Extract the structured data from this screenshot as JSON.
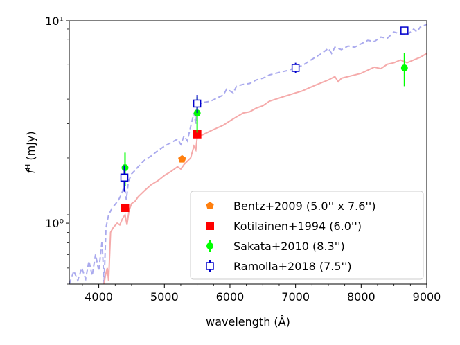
{
  "chart_data": {
    "type": "scatter",
    "xlabel": "wavelength (Å)",
    "ylabel": "f^H (mJy)",
    "ylabel_parts": {
      "main": "f",
      "sup": "H",
      "rest": " (mJy)"
    },
    "xlim": [
      3550,
      9000
    ],
    "ylim": [
      0.5,
      10
    ],
    "yscale": "log",
    "x_ticks": [
      4000,
      5000,
      6000,
      7000,
      8000,
      9000
    ],
    "x_tick_labels": [
      "4000",
      "5000",
      "6000",
      "7000",
      "8000",
      "9000"
    ],
    "y_ticks": [
      1,
      10
    ],
    "y_tick_labels": [
      "10⁰",
      "10¹"
    ],
    "legend_position": "lower-right",
    "series": [
      {
        "name": "Bentz+2009 (5.0'' x 7.6'')",
        "marker": "pentagon",
        "color": "#ff7f0e",
        "points": [
          {
            "x": 5270,
            "y": 2.07,
            "err": 0
          }
        ]
      },
      {
        "name": "Kotilainen+1994 (6.0'')",
        "marker": "square",
        "color": "#ff0000",
        "points": [
          {
            "x": 4400,
            "y": 1.19,
            "err": 0
          },
          {
            "x": 5500,
            "y": 2.75,
            "err": 0
          }
        ]
      },
      {
        "name": "Sakata+2010 (8.3'')",
        "marker": "circle",
        "color": "#00ff00",
        "points": [
          {
            "x": 4400,
            "y": 1.88,
            "err": 0.35
          },
          {
            "x": 5500,
            "y": 3.5,
            "err": 0.7
          },
          {
            "x": 8660,
            "y": 5.85,
            "err": 1.1
          }
        ]
      },
      {
        "name": "Ramolla+2018 (7.5'')",
        "marker": "open-square",
        "color": "#0000cc",
        "points": [
          {
            "x": 4390,
            "y": 1.68,
            "err": 0.25
          },
          {
            "x": 5500,
            "y": 3.9,
            "err": 0.4
          },
          {
            "x": 7000,
            "y": 5.85,
            "err": 0.35
          },
          {
            "x": 8660,
            "y": 8.95,
            "err": 0.3
          }
        ]
      }
    ],
    "spectra": [
      {
        "name": "spectrum-dashed",
        "color": "#aaaaee",
        "style": "dashed",
        "points": [
          [
            3550,
            0.5
          ],
          [
            3620,
            0.58
          ],
          [
            3680,
            0.52
          ],
          [
            3740,
            0.6
          ],
          [
            3800,
            0.53
          ],
          [
            3850,
            0.65
          ],
          [
            3900,
            0.55
          ],
          [
            3950,
            0.7
          ],
          [
            4000,
            0.58
          ],
          [
            4050,
            0.82
          ],
          [
            4080,
            0.5
          ],
          [
            4110,
            0.95
          ],
          [
            4150,
            1.1
          ],
          [
            4200,
            1.18
          ],
          [
            4260,
            1.25
          ],
          [
            4300,
            1.3
          ],
          [
            4350,
            1.4
          ],
          [
            4380,
            1.5
          ],
          [
            4400,
            1.45
          ],
          [
            4420,
            1.3
          ],
          [
            4450,
            1.6
          ],
          [
            4500,
            1.75
          ],
          [
            4550,
            1.82
          ],
          [
            4600,
            1.9
          ],
          [
            4700,
            2.05
          ],
          [
            4800,
            2.15
          ],
          [
            4900,
            2.28
          ],
          [
            5000,
            2.4
          ],
          [
            5100,
            2.5
          ],
          [
            5200,
            2.6
          ],
          [
            5250,
            2.45
          ],
          [
            5300,
            2.7
          ],
          [
            5350,
            2.55
          ],
          [
            5400,
            3.0
          ],
          [
            5450,
            3.5
          ],
          [
            5480,
            3.1
          ],
          [
            5500,
            3.8
          ],
          [
            5550,
            3.9
          ],
          [
            5600,
            3.95
          ],
          [
            5700,
            4.0
          ],
          [
            5800,
            4.15
          ],
          [
            5900,
            4.3
          ],
          [
            5950,
            4.6
          ],
          [
            6000,
            4.5
          ],
          [
            6050,
            4.4
          ],
          [
            6100,
            4.75
          ],
          [
            6200,
            4.85
          ],
          [
            6300,
            4.9
          ],
          [
            6400,
            5.1
          ],
          [
            6500,
            5.2
          ],
          [
            6600,
            5.4
          ],
          [
            6700,
            5.5
          ],
          [
            6800,
            5.6
          ],
          [
            6900,
            5.7
          ],
          [
            7000,
            5.9
          ],
          [
            7100,
            6.0
          ],
          [
            7200,
            6.3
          ],
          [
            7300,
            6.6
          ],
          [
            7400,
            6.9
          ],
          [
            7500,
            7.3
          ],
          [
            7550,
            6.9
          ],
          [
            7600,
            7.4
          ],
          [
            7700,
            7.2
          ],
          [
            7800,
            7.5
          ],
          [
            7900,
            7.4
          ],
          [
            8000,
            7.7
          ],
          [
            8100,
            8.0
          ],
          [
            8200,
            7.9
          ],
          [
            8300,
            8.3
          ],
          [
            8400,
            8.2
          ],
          [
            8500,
            8.8
          ],
          [
            8600,
            8.6
          ],
          [
            8700,
            8.5
          ],
          [
            8800,
            9.1
          ],
          [
            8850,
            8.8
          ],
          [
            8900,
            9.3
          ],
          [
            9000,
            9.6
          ]
        ]
      },
      {
        "name": "spectrum-solid",
        "color": "#f5aaaa",
        "style": "solid",
        "points": [
          [
            4080,
            0.5
          ],
          [
            4100,
            0.55
          ],
          [
            4130,
            0.6
          ],
          [
            4150,
            0.52
          ],
          [
            4180,
            0.9
          ],
          [
            4220,
            0.95
          ],
          [
            4280,
            1.0
          ],
          [
            4320,
            0.98
          ],
          [
            4360,
            1.05
          ],
          [
            4400,
            1.1
          ],
          [
            4430,
            0.98
          ],
          [
            4460,
            1.15
          ],
          [
            4500,
            1.25
          ],
          [
            4550,
            1.28
          ],
          [
            4600,
            1.35
          ],
          [
            4700,
            1.45
          ],
          [
            4800,
            1.55
          ],
          [
            4900,
            1.62
          ],
          [
            5000,
            1.72
          ],
          [
            5100,
            1.8
          ],
          [
            5200,
            1.9
          ],
          [
            5250,
            1.85
          ],
          [
            5300,
            1.95
          ],
          [
            5400,
            2.1
          ],
          [
            5450,
            2.4
          ],
          [
            5480,
            2.3
          ],
          [
            5500,
            2.65
          ],
          [
            5600,
            2.75
          ],
          [
            5700,
            2.85
          ],
          [
            5800,
            2.95
          ],
          [
            5900,
            3.05
          ],
          [
            6000,
            3.2
          ],
          [
            6100,
            3.35
          ],
          [
            6200,
            3.5
          ],
          [
            6300,
            3.55
          ],
          [
            6400,
            3.7
          ],
          [
            6500,
            3.8
          ],
          [
            6600,
            4.0
          ],
          [
            6700,
            4.1
          ],
          [
            6800,
            4.2
          ],
          [
            6900,
            4.3
          ],
          [
            7000,
            4.4
          ],
          [
            7100,
            4.5
          ],
          [
            7200,
            4.65
          ],
          [
            7300,
            4.8
          ],
          [
            7400,
            4.95
          ],
          [
            7500,
            5.1
          ],
          [
            7600,
            5.3
          ],
          [
            7650,
            5.0
          ],
          [
            7700,
            5.2
          ],
          [
            7800,
            5.3
          ],
          [
            7900,
            5.4
          ],
          [
            8000,
            5.5
          ],
          [
            8100,
            5.7
          ],
          [
            8200,
            5.9
          ],
          [
            8300,
            5.8
          ],
          [
            8400,
            6.1
          ],
          [
            8500,
            6.2
          ],
          [
            8600,
            6.4
          ],
          [
            8700,
            6.2
          ],
          [
            8800,
            6.4
          ],
          [
            8900,
            6.6
          ],
          [
            9000,
            6.9
          ]
        ]
      }
    ]
  }
}
